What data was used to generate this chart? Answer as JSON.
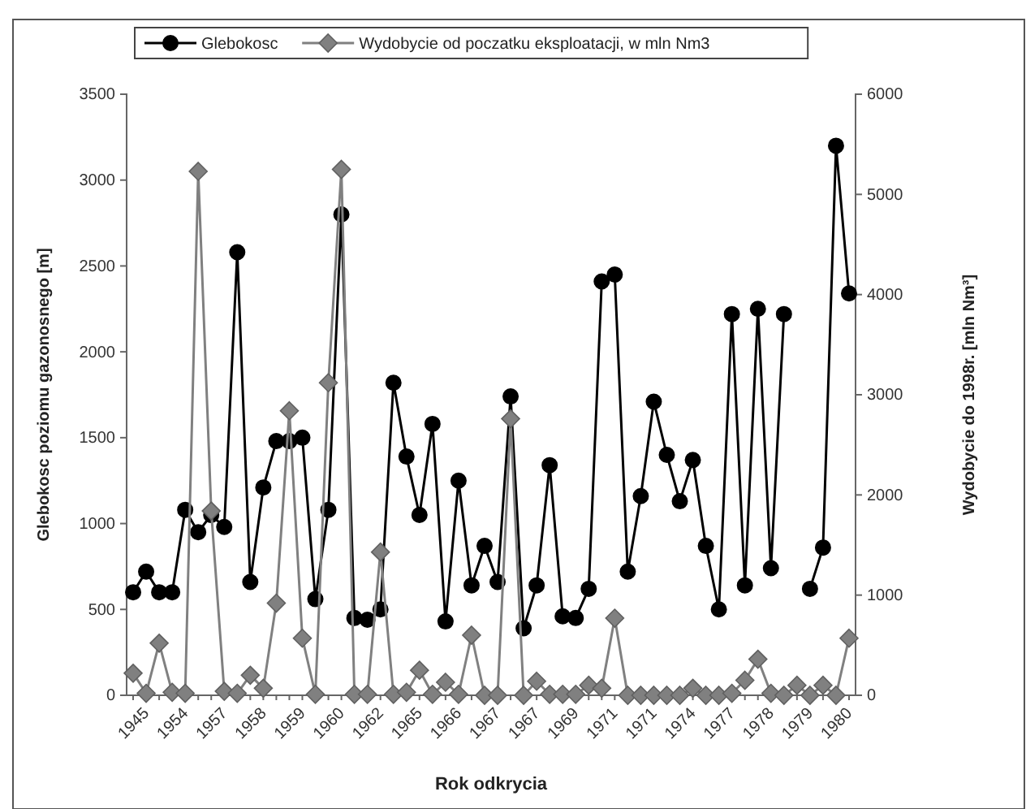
{
  "chart_data": {
    "type": "line",
    "xlabel": "Rok odkrycia",
    "ylabel": "Glebokosc poziomu gazonosnego [m]",
    "y2label": "Wydobycie do 1998r. [mln Nm³]",
    "categories": [
      "1945",
      null,
      null,
      "1954",
      null,
      null,
      "1957",
      null,
      null,
      "1958",
      null,
      null,
      "1959",
      null,
      null,
      "1960",
      null,
      null,
      "1962",
      null,
      null,
      "1965",
      null,
      null,
      "1966",
      null,
      null,
      "1967",
      null,
      null,
      "1967",
      null,
      null,
      "1969",
      null,
      null,
      "1971",
      null,
      null,
      "1971",
      null,
      null,
      "1974",
      null,
      null,
      "1977",
      null,
      null,
      "1978",
      null,
      null,
      "1979",
      null,
      null,
      "1980",
      null
    ],
    "series": [
      {
        "name": "Glebokosc",
        "color": "#000000",
        "marker": "circle",
        "values": [
          600,
          720,
          600,
          600,
          1080,
          950,
          1050,
          980,
          2580,
          660,
          1210,
          1480,
          1480,
          1500,
          560,
          1080,
          2800,
          450,
          440,
          500,
          1820,
          1390,
          1050,
          1580,
          430,
          1250,
          640,
          870,
          660,
          1740,
          390,
          640,
          1340,
          460,
          450,
          620,
          2410,
          2450,
          720,
          1160,
          1710,
          1400,
          1130,
          1370,
          870,
          500,
          2220,
          640,
          2250,
          740,
          2220,
          null,
          620,
          860,
          3200,
          2340
        ]
      },
      {
        "name": "Wydobycie od poczatku eksploatacji, w mln Nm3",
        "color": "#808080",
        "marker": "diamond",
        "axis": "y2",
        "values": [
          220,
          20,
          520,
          30,
          20,
          5230,
          1840,
          40,
          20,
          200,
          70,
          920,
          2840,
          570,
          10,
          3120,
          5250,
          10,
          10,
          1430,
          10,
          30,
          250,
          10,
          130,
          10,
          600,
          0,
          0,
          2760,
          0,
          140,
          10,
          10,
          10,
          100,
          70,
          770,
          0,
          0,
          0,
          0,
          0,
          70,
          0,
          0,
          20,
          150,
          360,
          20,
          0,
          100,
          0,
          100,
          0,
          570
        ]
      }
    ],
    "ylim": [
      0,
      3500
    ],
    "yticks": [
      0,
      500,
      1000,
      1500,
      2000,
      2500,
      3000,
      3500
    ],
    "y2lim": [
      0,
      6000
    ],
    "y2ticks": [
      0,
      1000,
      2000,
      3000,
      4000,
      5000,
      6000
    ],
    "legend": "top",
    "grid": false
  }
}
